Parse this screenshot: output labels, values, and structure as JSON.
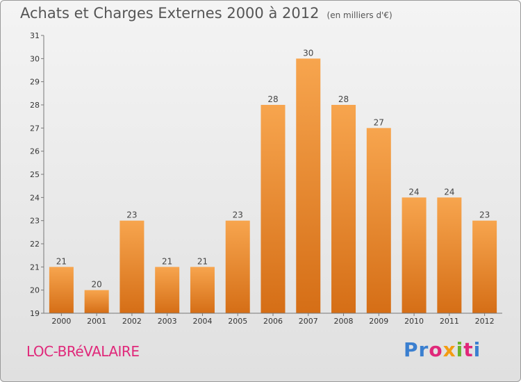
{
  "chart_data": {
    "type": "bar",
    "title": "Achats et Charges Externes 2000 à 2012",
    "subtitle": "(en milliers d'€)",
    "categories": [
      "2000",
      "2001",
      "2002",
      "2003",
      "2004",
      "2005",
      "2006",
      "2007",
      "2008",
      "2009",
      "2010",
      "2011",
      "2012"
    ],
    "values": [
      21,
      20,
      23,
      21,
      21,
      23,
      28,
      30,
      28,
      27,
      24,
      24,
      23
    ],
    "ylim": [
      19,
      31
    ],
    "yticks": [
      19,
      20,
      21,
      22,
      23,
      24,
      25,
      26,
      27,
      28,
      29,
      30,
      31
    ],
    "grid": false,
    "bar_colors": {
      "top": "#f7a54e",
      "bottom": "#d56e16"
    }
  },
  "commune": "LOC-BRéVALAIRE",
  "brand": {
    "letters": [
      {
        "ch": "P",
        "color": "#3a7fd0"
      },
      {
        "ch": "r",
        "color": "#3a7fd0"
      },
      {
        "ch": "o",
        "color": "#e0287a"
      },
      {
        "ch": "x",
        "color": "#f39c12"
      },
      {
        "ch": "i",
        "color": "#6ab42d"
      },
      {
        "ch": "t",
        "color": "#e0287a"
      },
      {
        "ch": "i",
        "color": "#3a7fd0"
      }
    ]
  }
}
